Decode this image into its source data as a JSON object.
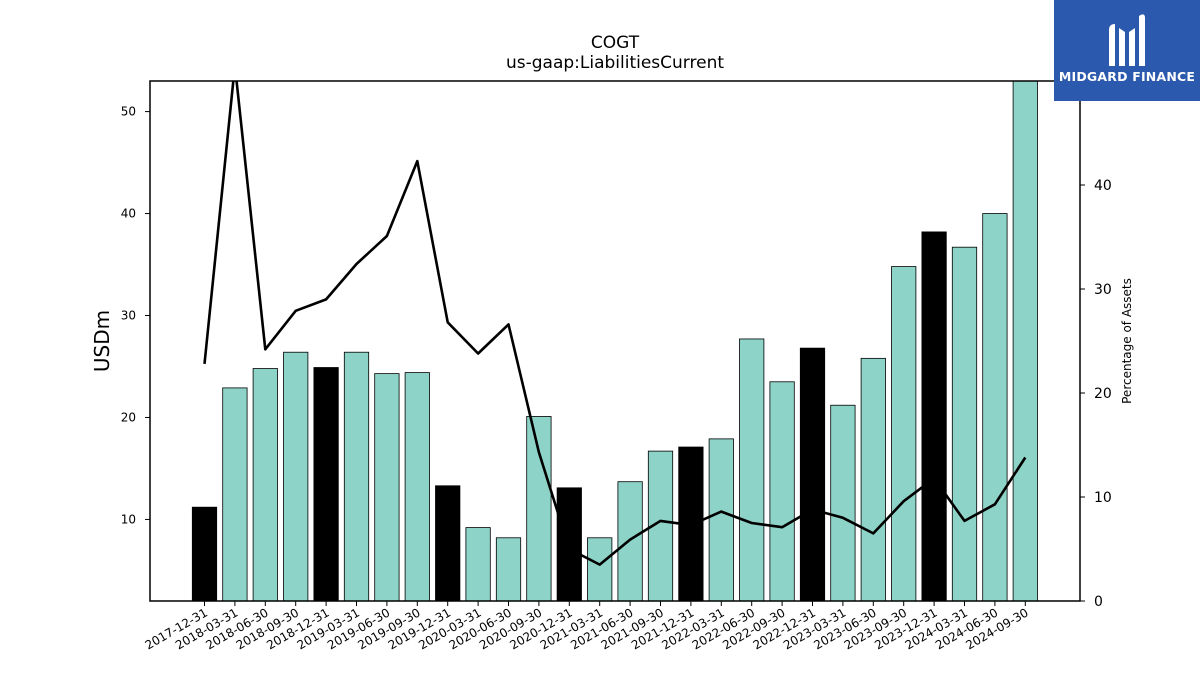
{
  "chart_data": {
    "type": "bar+line",
    "title": "COGT",
    "subtitle": "us-gaap:LiabilitiesCurrent",
    "ylabel_left": "USDm",
    "ylabel_right": "Percentage of Assets",
    "categories": [
      "2017-12-31",
      "2018-03-31",
      "2018-06-30",
      "2018-09-30",
      "2018-12-31",
      "2019-03-31",
      "2019-06-30",
      "2019-09-30",
      "2019-12-31",
      "2020-03-31",
      "2020-06-30",
      "2020-09-30",
      "2020-12-31",
      "2021-03-31",
      "2021-06-30",
      "2021-09-30",
      "2021-12-31",
      "2022-03-31",
      "2022-06-30",
      "2022-09-30",
      "2022-12-31",
      "2023-03-31",
      "2023-06-30",
      "2023-09-30",
      "2023-12-31",
      "2024-03-31",
      "2024-06-30",
      "2024-09-30"
    ],
    "bar_values": [
      11.2,
      22.9,
      24.8,
      26.4,
      24.9,
      26.4,
      24.3,
      24.4,
      13.3,
      9.2,
      8.2,
      20.1,
      13.1,
      8.2,
      13.7,
      16.7,
      17.1,
      17.9,
      27.7,
      23.5,
      26.8,
      21.2,
      25.8,
      34.8,
      38.2,
      36.7,
      40.0,
      53.5
    ],
    "bar_is_year_end": [
      true,
      false,
      false,
      false,
      true,
      false,
      false,
      false,
      true,
      false,
      false,
      false,
      true,
      false,
      false,
      false,
      true,
      false,
      false,
      false,
      true,
      false,
      false,
      false,
      true,
      false,
      false,
      false
    ],
    "line_values": [
      22.8,
      51.5,
      24.2,
      27.9,
      29.0,
      32.4,
      35.1,
      42.3,
      26.8,
      23.8,
      26.6,
      14.3,
      5.0,
      3.5,
      5.9,
      7.7,
      7.3,
      8.6,
      7.5,
      7.1,
      8.8,
      8.0,
      6.5,
      9.6,
      11.8,
      7.7,
      9.3,
      13.8
    ],
    "ylim_left": [
      2,
      53
    ],
    "yticks_left": [
      10,
      20,
      30,
      40,
      50
    ],
    "ylim_right": [
      0,
      50
    ],
    "yticks_right": [
      0,
      10,
      20,
      30,
      40
    ],
    "colors": {
      "bar": "#8dd3c7",
      "bar_year_end": "#000000",
      "line": "#000000"
    },
    "grid": false
  },
  "logo": {
    "text": "MIDGARD FINANCE"
  }
}
